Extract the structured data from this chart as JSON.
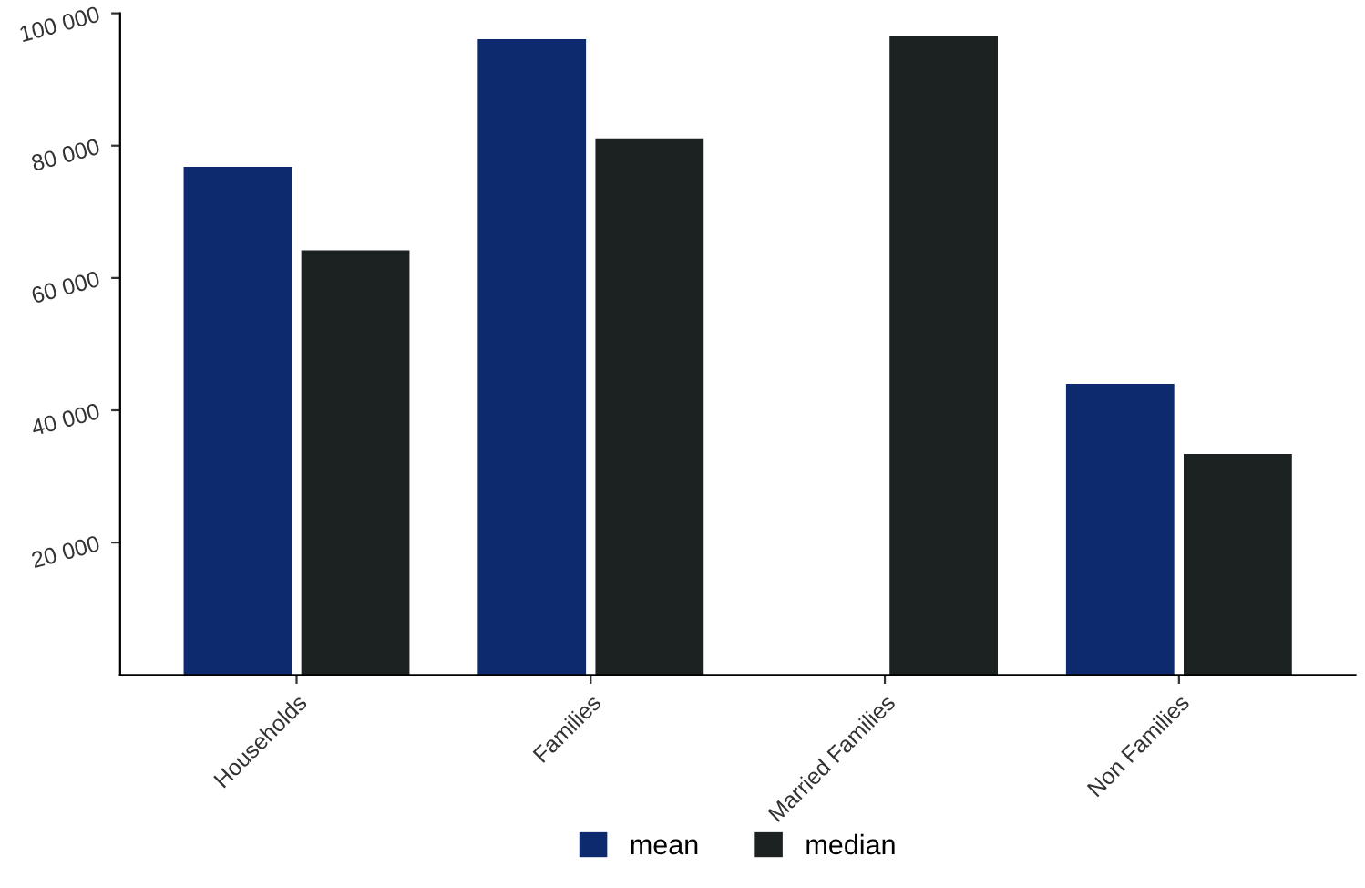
{
  "chart_data": {
    "type": "bar",
    "categories": [
      "Households",
      "Families",
      "Married Families",
      "Non Families"
    ],
    "series": [
      {
        "name": "mean",
        "color": "#0d2a6e",
        "values": [
          76800,
          96100,
          null,
          44000
        ]
      },
      {
        "name": "median",
        "color": "#1c2121",
        "values": [
          64200,
          81100,
          96500,
          33400
        ]
      }
    ],
    "ylim": [
      0,
      100000
    ],
    "yticks": [
      {
        "value": 20000,
        "label": "20 000"
      },
      {
        "value": 40000,
        "label": "40 000"
      },
      {
        "value": 60000,
        "label": "60 000"
      },
      {
        "value": 80000,
        "label": "80 000"
      },
      {
        "value": 100000,
        "label": "100 000"
      }
    ],
    "grid": false,
    "legend": "bottom"
  }
}
